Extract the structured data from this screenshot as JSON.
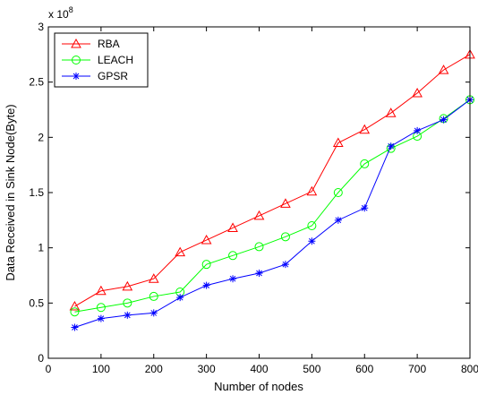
{
  "chart_data": {
    "type": "line",
    "xlabel": "Number of nodes",
    "ylabel": "Data Received in Sink Node(Byte)",
    "y_exponent_label": "x 10",
    "y_exponent_power": "8",
    "xlim": [
      0,
      800
    ],
    "ylim": [
      0,
      3
    ],
    "xticks": [
      0,
      100,
      200,
      300,
      400,
      500,
      600,
      700,
      800
    ],
    "yticks": [
      0,
      0.5,
      1,
      1.5,
      2,
      2.5,
      3
    ],
    "ytick_labels": [
      "0",
      "0.5",
      "1",
      "1.5",
      "2",
      "2.5",
      "3"
    ],
    "grid": false,
    "legend_position": "top-left",
    "x": [
      50,
      100,
      150,
      200,
      250,
      300,
      350,
      400,
      450,
      500,
      550,
      600,
      650,
      700,
      750,
      800
    ],
    "series": [
      {
        "name": "RBA",
        "color": "#ff0000",
        "marker": "triangle",
        "values": [
          0.47,
          0.61,
          0.65,
          0.72,
          0.96,
          1.07,
          1.18,
          1.29,
          1.4,
          1.51,
          1.95,
          2.07,
          2.22,
          2.4,
          2.61,
          2.75
        ]
      },
      {
        "name": "LEACH",
        "color": "#00ff00",
        "marker": "circle",
        "values": [
          0.42,
          0.46,
          0.5,
          0.56,
          0.6,
          0.85,
          0.93,
          1.01,
          1.1,
          1.2,
          1.5,
          1.76,
          1.9,
          2.01,
          2.17,
          2.34
        ]
      },
      {
        "name": "GPSR",
        "color": "#0000ff",
        "marker": "star",
        "values": [
          0.28,
          0.36,
          0.39,
          0.41,
          0.55,
          0.66,
          0.72,
          0.77,
          0.85,
          1.06,
          1.25,
          1.36,
          1.92,
          2.06,
          2.16,
          2.34
        ]
      }
    ]
  }
}
